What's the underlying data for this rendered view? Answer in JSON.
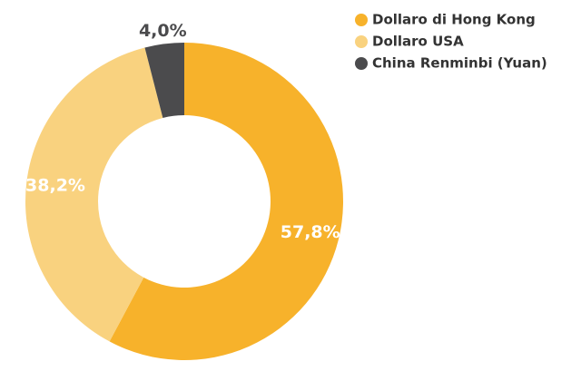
{
  "chart_data": {
    "type": "pie",
    "categories": [
      "Dollaro di Hong Kong",
      "Dollaro USA",
      "China Renminbi (Yuan)"
    ],
    "values": [
      57.8,
      38.2,
      4.0
    ],
    "value_labels": [
      "57,8%",
      "38,2%",
      "4,0%"
    ],
    "colors": [
      "#f7b22b",
      "#f9d27f",
      "#4b4b4d"
    ],
    "legend": "top-right"
  }
}
